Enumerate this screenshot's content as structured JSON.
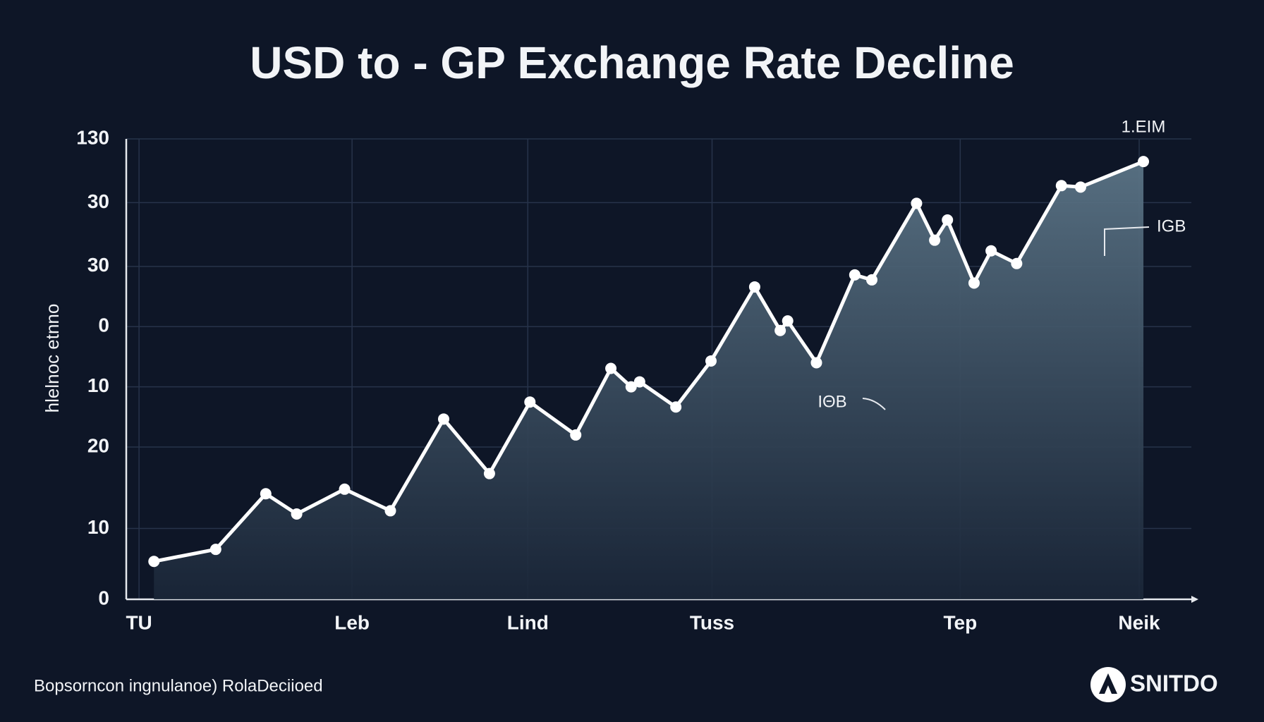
{
  "chart_data": {
    "type": "area",
    "title": "USD to - GP Exchange Rate Decline",
    "y_label": "hlelnoc etnno",
    "color": "#ffffff",
    "x": [
      2.6,
      8.4,
      13.1,
      16.0,
      20.5,
      24.8,
      29.8,
      34.1,
      37.9,
      42.2,
      45.5,
      47.4,
      48.2,
      51.6,
      54.9,
      59.0,
      61.4,
      62.1,
      64.8,
      68.4,
      70.0,
      74.2,
      75.9,
      77.1,
      79.6,
      81.2,
      83.6,
      87.8,
      89.6,
      95.5
    ],
    "values": [
      10.7,
      14.1,
      29.8,
      24.1,
      31.1,
      25.0,
      50.9,
      35.5,
      55.7,
      46.4,
      65.2,
      60.0,
      61.4,
      54.3,
      67.3,
      88.2,
      75.9,
      78.6,
      66.8,
      91.6,
      90.2,
      111.8,
      101.4,
      107.1,
      89.3,
      98.4,
      94.8,
      116.8,
      116.4,
      123.6
    ],
    "xlim": [
      0,
      100
    ],
    "ylim": [
      0,
      130
    ],
    "xticks": [
      {
        "value": 1.2,
        "label": "TU"
      },
      {
        "value": 21.2,
        "label": "Leb"
      },
      {
        "value": 37.7,
        "label": "Lind"
      },
      {
        "value": 55.0,
        "label": "Tuss"
      },
      {
        "value": 78.3,
        "label": "Tep"
      },
      {
        "value": 95.1,
        "label": "Neik"
      }
    ],
    "yticks": [
      0,
      {
        "value": 20,
        "label": "10"
      },
      {
        "value": 43,
        "label": "20"
      },
      {
        "value": 60,
        "label": "10"
      },
      {
        "value": 77,
        "label": "0"
      },
      {
        "value": 94,
        "label": "30"
      },
      {
        "value": 112,
        "label": "30"
      },
      130
    ],
    "grid": true,
    "annotations": [
      "1.EIM",
      "IGB",
      "IΘB"
    ],
    "footnote": "Bopsorncon ingnulanoe) RolaDeciioed",
    "logo": "SNITDO"
  }
}
